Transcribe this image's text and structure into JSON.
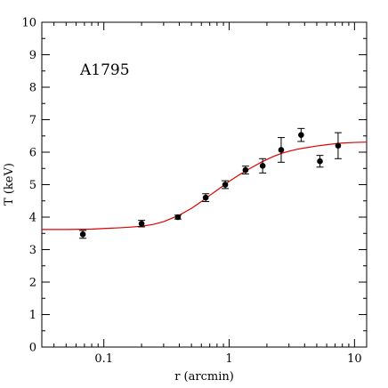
{
  "chart_data": {
    "type": "scatter",
    "title": "",
    "annotation": "A1795",
    "xlabel": "r (arcmin)",
    "ylabel": "T (keV)",
    "xscale": "log",
    "xlim": [
      0.032,
      12.5
    ],
    "ylim": [
      0,
      10
    ],
    "grid": false,
    "xticks": [
      {
        "value": 0.1,
        "label": "0.1"
      },
      {
        "value": 1,
        "label": "1"
      },
      {
        "value": 10,
        "label": "10"
      }
    ],
    "yticks": [
      {
        "value": 0,
        "label": "0"
      },
      {
        "value": 1,
        "label": "1"
      },
      {
        "value": 2,
        "label": "2"
      },
      {
        "value": 3,
        "label": "3"
      },
      {
        "value": 4,
        "label": "4"
      },
      {
        "value": 5,
        "label": "5"
      },
      {
        "value": 6,
        "label": "6"
      },
      {
        "value": 7,
        "label": "7"
      },
      {
        "value": 8,
        "label": "8"
      },
      {
        "value": 9,
        "label": "9"
      },
      {
        "value": 10,
        "label": "10"
      }
    ],
    "points": [
      {
        "x": 0.068,
        "y": 3.47,
        "err": 0.12
      },
      {
        "x": 0.2,
        "y": 3.8,
        "err": 0.1
      },
      {
        "x": 0.39,
        "y": 4.0,
        "err": 0.06
      },
      {
        "x": 0.65,
        "y": 4.6,
        "err": 0.12
      },
      {
        "x": 0.93,
        "y": 5.0,
        "err": 0.12
      },
      {
        "x": 1.35,
        "y": 5.45,
        "err": 0.12
      },
      {
        "x": 1.85,
        "y": 5.58,
        "err": 0.22
      },
      {
        "x": 2.6,
        "y": 6.07,
        "err": 0.38
      },
      {
        "x": 3.75,
        "y": 6.53,
        "err": 0.2
      },
      {
        "x": 5.3,
        "y": 5.72,
        "err": 0.18
      },
      {
        "x": 7.4,
        "y": 6.2,
        "err": 0.4
      }
    ],
    "model_curve": {
      "color": "#e00000",
      "x": [
        0.032,
        0.05,
        0.08,
        0.1,
        0.13,
        0.16,
        0.2,
        0.25,
        0.3,
        0.4,
        0.5,
        0.6,
        0.7,
        0.8,
        1.0,
        1.2,
        1.5,
        1.8,
        2.2,
        2.6,
        3.0,
        3.5,
        4.0,
        5.0,
        6.0,
        7.0,
        8.0,
        10.0,
        12.5
      ],
      "y": [
        3.62,
        3.62,
        3.63,
        3.65,
        3.67,
        3.69,
        3.72,
        3.78,
        3.86,
        4.06,
        4.27,
        4.48,
        4.67,
        4.83,
        5.1,
        5.3,
        5.52,
        5.69,
        5.85,
        5.96,
        6.03,
        6.09,
        6.13,
        6.19,
        6.23,
        6.26,
        6.28,
        6.3,
        6.31
      ]
    },
    "marker_color": "#000000",
    "errorbar_color": "#000000"
  }
}
